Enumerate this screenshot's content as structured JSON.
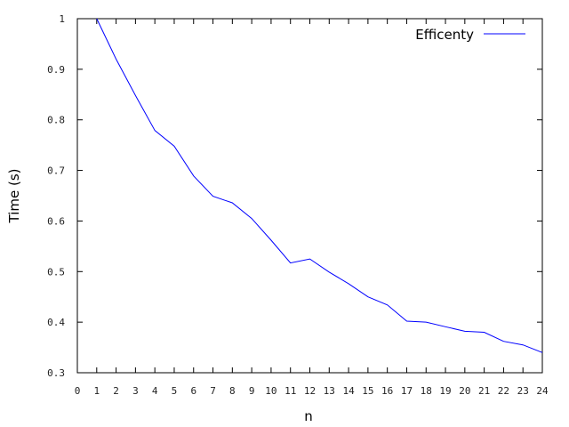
{
  "chart_data": {
    "type": "line",
    "title": "",
    "xlabel": "n",
    "ylabel": "Time (s)",
    "xlim": [
      0,
      24
    ],
    "ylim": [
      0.3,
      1
    ],
    "xticks": [
      "0",
      "1",
      "2",
      "3",
      "4",
      "5",
      "6",
      "7",
      "8",
      "9",
      "10",
      "11",
      "12",
      "13",
      "14",
      "15",
      "16",
      "17",
      "18",
      "19",
      "20",
      "21",
      "22",
      "23",
      "24"
    ],
    "yticks": [
      "0.3",
      "0.4",
      "0.5",
      "0.6",
      "0.7",
      "0.8",
      "0.9",
      "1"
    ],
    "grid": false,
    "legend_position": "top-right",
    "series": [
      {
        "name": "Efficenty",
        "color": "#0000ff",
        "x": [
          1,
          2,
          3,
          4,
          5,
          6,
          7,
          8,
          9,
          10,
          11,
          12,
          13,
          14,
          15,
          16,
          17,
          18,
          19,
          20,
          21,
          22,
          23,
          24
        ],
        "y": [
          1.0,
          0.92,
          0.848,
          0.779,
          0.748,
          0.689,
          0.649,
          0.636,
          0.605,
          0.562,
          0.517,
          0.525,
          0.499,
          0.476,
          0.45,
          0.434,
          0.402,
          0.4,
          0.391,
          0.382,
          0.38,
          0.362,
          0.355,
          0.34
        ]
      }
    ]
  }
}
